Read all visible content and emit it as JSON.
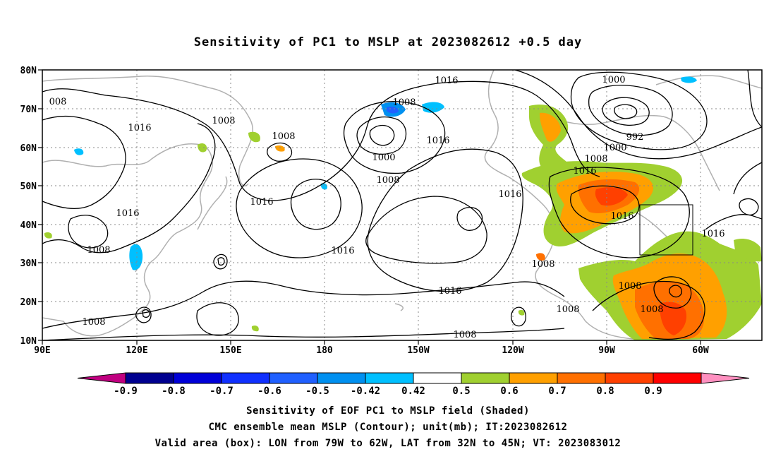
{
  "title": "Sensitivity of PC1 to MSLP at 2023082612 +0.5 day",
  "lat_labels": [
    "80N",
    "70N",
    "60N",
    "50N",
    "40N",
    "30N",
    "20N",
    "10N"
  ],
  "lon_labels": [
    "90E",
    "120E",
    "150E",
    "180",
    "150W",
    "120W",
    "90W",
    "60W"
  ],
  "contour_labels": [
    {
      "t": "1016"
    },
    {
      "t": "1008"
    },
    {
      "t": "008"
    },
    {
      "t": "1016"
    },
    {
      "t": "1008"
    },
    {
      "t": "1008"
    },
    {
      "t": "1016"
    },
    {
      "t": "1000"
    },
    {
      "t": "1008"
    },
    {
      "t": "1016"
    },
    {
      "t": "1016"
    },
    {
      "t": "1008"
    },
    {
      "t": "1016"
    },
    {
      "t": "1016"
    },
    {
      "t": "1000"
    },
    {
      "t": "992"
    },
    {
      "t": "1000"
    },
    {
      "t": "1008"
    },
    {
      "t": "1016"
    },
    {
      "t": "1016"
    },
    {
      "t": "1016"
    },
    {
      "t": "1008"
    },
    {
      "t": "1008"
    },
    {
      "t": "1008"
    },
    {
      "t": "1008"
    },
    {
      "t": "1016"
    },
    {
      "t": "1008"
    }
  ],
  "colorbar": {
    "ticks": [
      "-0.9",
      "-0.8",
      "-0.7",
      "-0.6",
      "-0.5",
      "-0.42",
      "0.42",
      "0.5",
      "0.6",
      "0.7",
      "0.8",
      "0.9"
    ],
    "colors": [
      "#000090",
      "#0000d8",
      "#1030ff",
      "#2060ff",
      "#0090f0",
      "#00c0ff",
      "#ffffff",
      "#a0d030",
      "#ffa000",
      "#ff7000",
      "#ff4000",
      "#ff0000"
    ],
    "low_color": "#c00080",
    "high_color": "#ff90c0"
  },
  "caption": {
    "line1": "Sensitivity of EOF PC1 to MSLP field (Shaded)",
    "line2": "CMC ensemble mean MSLP (Contour); unit(mb); IT:2023082612",
    "line3": "Valid area (box): LON from 79W to 62W, LAT from 32N to 45N; VT: 2023083012"
  },
  "valid_box": {
    "lon_min": -79,
    "lon_max": -62,
    "lat_min": 32,
    "lat_max": 45
  }
}
